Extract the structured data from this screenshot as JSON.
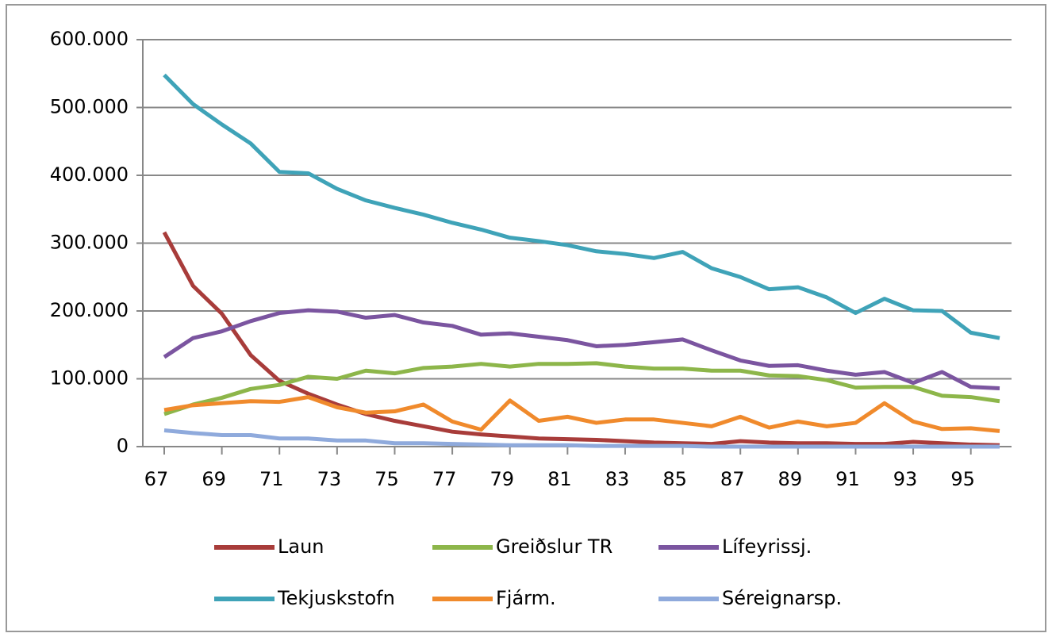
{
  "chart_data": {
    "type": "line",
    "x": [
      67,
      68,
      69,
      70,
      71,
      72,
      73,
      74,
      75,
      76,
      77,
      78,
      79,
      80,
      81,
      82,
      83,
      84,
      85,
      86,
      87,
      88,
      89,
      90,
      91,
      92,
      93,
      94,
      95,
      96
    ],
    "xlim": [
      67,
      96
    ],
    "xticks": [
      67,
      69,
      71,
      73,
      75,
      77,
      79,
      81,
      83,
      85,
      87,
      89,
      91,
      93,
      95
    ],
    "ylim": [
      0,
      600000
    ],
    "yticks": [
      {
        "value": 0,
        "label": "0"
      },
      {
        "value": 100000,
        "label": "100.000"
      },
      {
        "value": 200000,
        "label": "200.000"
      },
      {
        "value": 300000,
        "label": "300.000"
      },
      {
        "value": 400000,
        "label": "400.000"
      },
      {
        "value": 500000,
        "label": "500.000"
      },
      {
        "value": 600000,
        "label": "600.000"
      }
    ],
    "grid": true,
    "series": [
      {
        "name": "Laun",
        "color": "#a83c3a",
        "values": [
          316000,
          237000,
          196000,
          135000,
          97000,
          78000,
          62000,
          48000,
          38000,
          30000,
          22000,
          18000,
          15000,
          12000,
          11000,
          10000,
          8000,
          6000,
          5000,
          4000,
          8000,
          6000,
          5000,
          5000,
          4000,
          4000,
          7000,
          5000,
          3000,
          2000
        ]
      },
      {
        "name": "Greiðslur TR",
        "color": "#8db64a",
        "values": [
          48000,
          62000,
          72000,
          85000,
          91000,
          103000,
          100000,
          112000,
          108000,
          116000,
          118000,
          122000,
          118000,
          122000,
          122000,
          123000,
          118000,
          115000,
          115000,
          112000,
          112000,
          105000,
          104000,
          98000,
          87000,
          88000,
          88000,
          75000,
          73000,
          67000
        ]
      },
      {
        "name": "Lífeyrissj.",
        "color": "#7b55a0",
        "values": [
          132000,
          160000,
          170000,
          185000,
          197000,
          201000,
          199000,
          190000,
          194000,
          183000,
          178000,
          165000,
          167000,
          162000,
          157000,
          148000,
          150000,
          154000,
          158000,
          142000,
          127000,
          119000,
          120000,
          112000,
          106000,
          110000,
          94000,
          110000,
          88000,
          86000
        ]
      },
      {
        "name": "Tekjuskstofn",
        "color": "#3fa3b8",
        "values": [
          548000,
          505000,
          475000,
          447000,
          405000,
          403000,
          380000,
          363000,
          352000,
          342000,
          330000,
          320000,
          308000,
          303000,
          297000,
          288000,
          284000,
          278000,
          287000,
          263000,
          250000,
          232000,
          235000,
          220000,
          197000,
          218000,
          201000,
          200000,
          168000,
          160000
        ]
      },
      {
        "name": "Fjárm.",
        "color": "#f08a2c",
        "values": [
          54000,
          61000,
          64000,
          67000,
          66000,
          73000,
          58000,
          50000,
          52000,
          62000,
          37000,
          25000,
          68000,
          38000,
          44000,
          35000,
          40000,
          40000,
          35000,
          30000,
          44000,
          28000,
          37000,
          30000,
          35000,
          64000,
          37000,
          26000,
          27000,
          23000
        ]
      },
      {
        "name": "Séreignarsp.",
        "color": "#8faadc",
        "values": [
          24000,
          20000,
          17000,
          17000,
          12000,
          12000,
          9000,
          9000,
          5000,
          5000,
          4000,
          3000,
          2000,
          2000,
          2000,
          1000,
          1000,
          1000,
          1000,
          0,
          0,
          0,
          0,
          0,
          0,
          0,
          0,
          0,
          0,
          0
        ]
      }
    ]
  }
}
